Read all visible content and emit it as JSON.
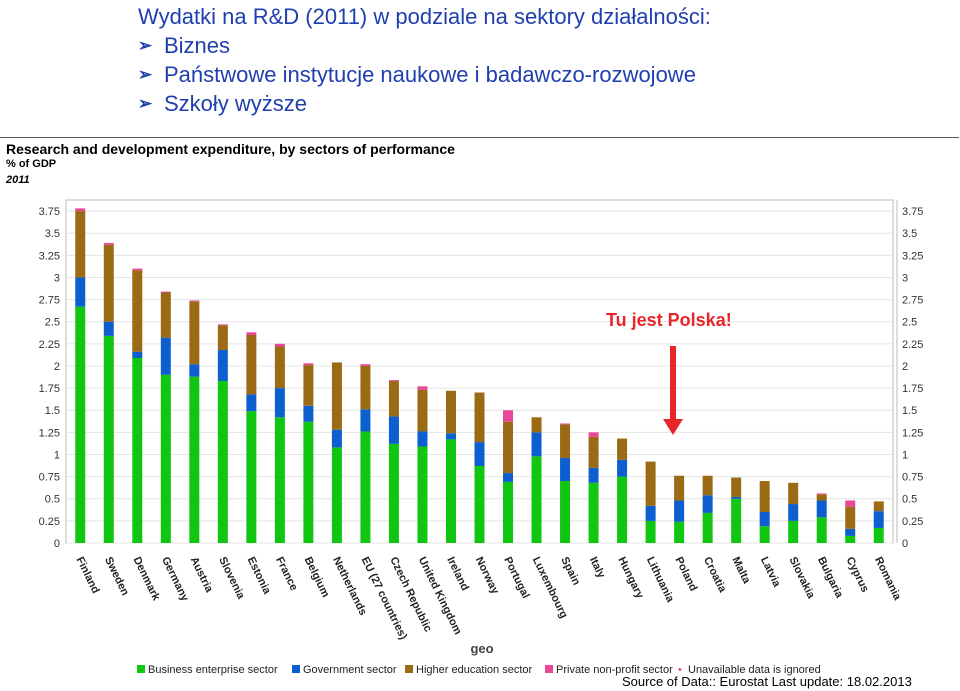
{
  "slide": {
    "title": "Wydatki na R&D (2011) w podziale na sektory działalności:",
    "bullets": [
      "Biznes",
      "Państwowe instytucje naukowe i badawczo-rozwojowe",
      "Szkoły wyższe"
    ]
  },
  "annotation": "Tu jest Polska!",
  "source": "Source of Data:: Eurostat Last update: 18.02.2013",
  "colors": {
    "business": "#11c611",
    "government": "#0d5fcf",
    "higher": "#9b6a14",
    "nonprofit": "#e8479a",
    "arrow": "#e8262a"
  },
  "chart_data": {
    "type": "bar",
    "stacked": true,
    "title": "Research and development expenditure, by sectors of performance",
    "subtitle": "% of GDP",
    "year": "2011",
    "xlabel": "geo",
    "ylim": [
      0,
      3.875
    ],
    "yticks": [
      0,
      0.25,
      0.5,
      0.75,
      1,
      1.25,
      1.5,
      1.75,
      2,
      2.25,
      2.5,
      2.75,
      3,
      3.25,
      3.5,
      3.75
    ],
    "ytick_labels": [
      "0",
      "0.25",
      "0.5",
      "0.75",
      "1",
      "1.25",
      "1.5",
      "1.75",
      "2",
      "2.25",
      "2.5",
      "2.75",
      "3",
      "3.25",
      "3.5",
      "3.75"
    ],
    "legend_note": "Unavailable data is ignored",
    "categories": [
      "Finland",
      "Sweden",
      "Denmark",
      "Germany",
      "Austria",
      "Slovenia",
      "Estonia",
      "France",
      "Belgium",
      "Netherlands",
      "EU (27 countries)",
      "Czech Republic",
      "United Kingdom",
      "Ireland",
      "Norway",
      "Portugal",
      "Luxembourg",
      "Spain",
      "Italy",
      "Hungary",
      "Lithuania",
      "Poland",
      "Croatia",
      "Malta",
      "Latvia",
      "Slovakia",
      "Bulgaria",
      "Cyprus",
      "Romania"
    ],
    "series": [
      {
        "name": "Business enterprise sector",
        "values": [
          2.67,
          2.34,
          2.09,
          1.9,
          1.88,
          1.83,
          1.49,
          1.42,
          1.37,
          1.08,
          1.26,
          1.12,
          1.09,
          1.17,
          0.87,
          0.69,
          0.98,
          0.7,
          0.68,
          0.75,
          0.25,
          0.24,
          0.34,
          0.5,
          0.19,
          0.25,
          0.29,
          0.08,
          0.17
        ]
      },
      {
        "name": "Government sector",
        "values": [
          0.33,
          0.16,
          0.07,
          0.42,
          0.14,
          0.35,
          0.19,
          0.33,
          0.18,
          0.2,
          0.25,
          0.31,
          0.17,
          0.07,
          0.27,
          0.1,
          0.27,
          0.26,
          0.17,
          0.19,
          0.17,
          0.24,
          0.2,
          0.02,
          0.16,
          0.19,
          0.19,
          0.08,
          0.19
        ]
      },
      {
        "name": "Higher education sector",
        "values": [
          0.75,
          0.87,
          0.92,
          0.51,
          0.71,
          0.28,
          0.67,
          0.47,
          0.46,
          0.76,
          0.49,
          0.4,
          0.47,
          0.48,
          0.56,
          0.58,
          0.17,
          0.38,
          0.35,
          0.24,
          0.5,
          0.28,
          0.22,
          0.22,
          0.35,
          0.24,
          0.07,
          0.25,
          0.11
        ]
      },
      {
        "name": "Private non-profit sector",
        "values": [
          0.03,
          0.02,
          0.02,
          0.01,
          0.01,
          0.01,
          0.03,
          0.03,
          0.02,
          0.0,
          0.02,
          0.01,
          0.04,
          0.0,
          0.0,
          0.13,
          0.0,
          0.01,
          0.05,
          0.0,
          0.0,
          0.0,
          0.0,
          0.0,
          0.0,
          0.0,
          0.01,
          0.07,
          0.0
        ]
      }
    ]
  }
}
